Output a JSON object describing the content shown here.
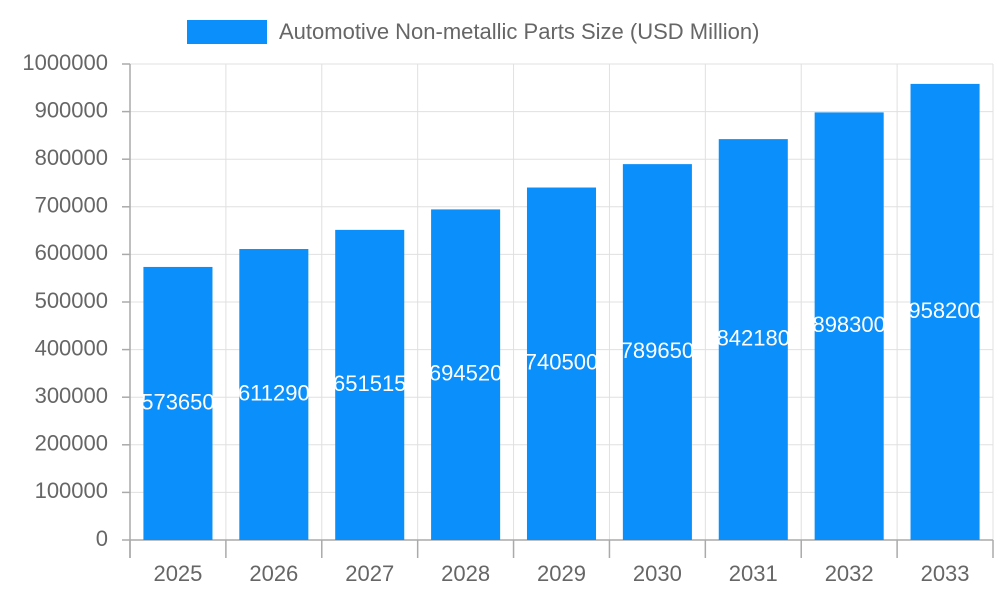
{
  "chart_data": {
    "type": "bar",
    "categories": [
      "2025",
      "2026",
      "2027",
      "2028",
      "2029",
      "2030",
      "2031",
      "2032",
      "2033"
    ],
    "series": [
      {
        "name": "Automotive Non-metallic Parts Size (USD Million)",
        "color": "#0a8ffb",
        "values": [
          573650,
          611290,
          651515,
          694520,
          740500,
          789650,
          842180,
          898300,
          958200
        ]
      }
    ],
    "ylim": [
      0,
      1000000
    ],
    "yticks": [
      0,
      100000,
      200000,
      300000,
      400000,
      500000,
      600000,
      700000,
      800000,
      900000,
      1000000
    ],
    "grid": true,
    "legend": "top"
  }
}
